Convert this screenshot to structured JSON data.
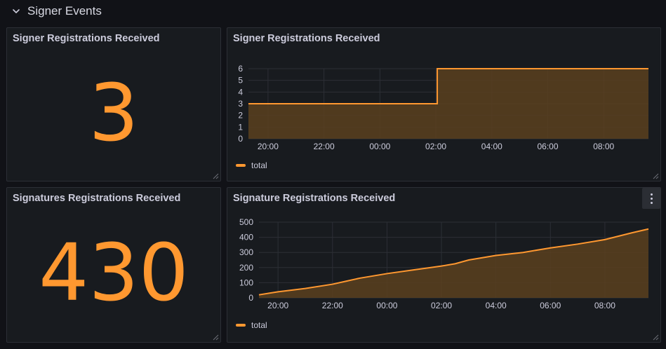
{
  "row": {
    "title": "Signer Events",
    "chevron_icon": "chevron-down-icon"
  },
  "colors": {
    "series": "#ff9830",
    "fill": "#5a3f1f",
    "grid": "#2c2f36",
    "panel_bg": "#181b1f",
    "page_bg": "#111217"
  },
  "panels": {
    "stat_signers": {
      "title": "Signer Registrations Received",
      "value": "3"
    },
    "stat_signatures": {
      "title": "Signatures Registrations Received",
      "value": "430"
    },
    "chart_signers": {
      "title": "Signer Registrations Received",
      "legend": "total"
    },
    "chart_signatures": {
      "title": "Signature Registrations Received",
      "legend": "total",
      "menu_icon": "kebab-menu-icon"
    }
  },
  "chart_data": [
    {
      "type": "area",
      "title": "Signer Registrations Received",
      "x_ticks": [
        "20:00",
        "22:00",
        "00:00",
        "02:00",
        "04:00",
        "06:00",
        "08:00"
      ],
      "y_ticks": [
        0,
        1,
        2,
        3,
        4,
        5,
        6
      ],
      "ylim": [
        0,
        6
      ],
      "xlim_hours": [
        19.3,
        33.6
      ],
      "series": [
        {
          "name": "total",
          "points": [
            [
              19.3,
              3
            ],
            [
              26.05,
              3
            ],
            [
              26.05,
              6
            ],
            [
              33.6,
              6
            ]
          ]
        }
      ],
      "legend": "bottom-left",
      "grid": true
    },
    {
      "type": "area",
      "title": "Signature Registrations Received",
      "x_ticks": [
        "20:00",
        "22:00",
        "00:00",
        "02:00",
        "04:00",
        "06:00",
        "08:00"
      ],
      "y_ticks": [
        0,
        100,
        200,
        300,
        400,
        500
      ],
      "ylim": [
        0,
        500
      ],
      "xlim_hours": [
        19.3,
        33.6
      ],
      "series": [
        {
          "name": "total",
          "points": [
            [
              19.3,
              20
            ],
            [
              20.0,
              40
            ],
            [
              21.0,
              62
            ],
            [
              22.0,
              90
            ],
            [
              22.5,
              110
            ],
            [
              23.0,
              130
            ],
            [
              24.0,
              160
            ],
            [
              25.0,
              185
            ],
            [
              26.0,
              210
            ],
            [
              26.5,
              225
            ],
            [
              27.0,
              250
            ],
            [
              28.0,
              280
            ],
            [
              29.0,
              300
            ],
            [
              30.0,
              330
            ],
            [
              31.0,
              355
            ],
            [
              32.0,
              385
            ],
            [
              33.0,
              430
            ],
            [
              33.6,
              455
            ]
          ]
        }
      ],
      "legend": "bottom-left",
      "grid": true
    }
  ]
}
